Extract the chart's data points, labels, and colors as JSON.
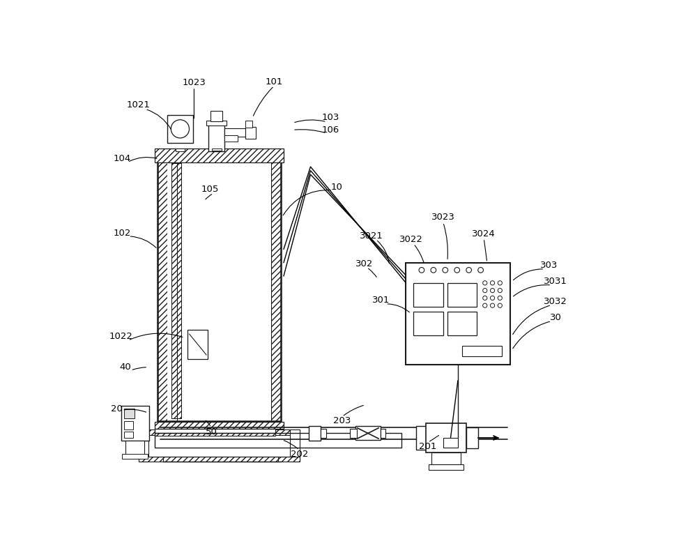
{
  "figw": 10.0,
  "figh": 7.96,
  "dpi": 100,
  "bg": "#ffffff",
  "lc": "#1a1a1a",
  "lw": 1.2,
  "fs": 9.5
}
